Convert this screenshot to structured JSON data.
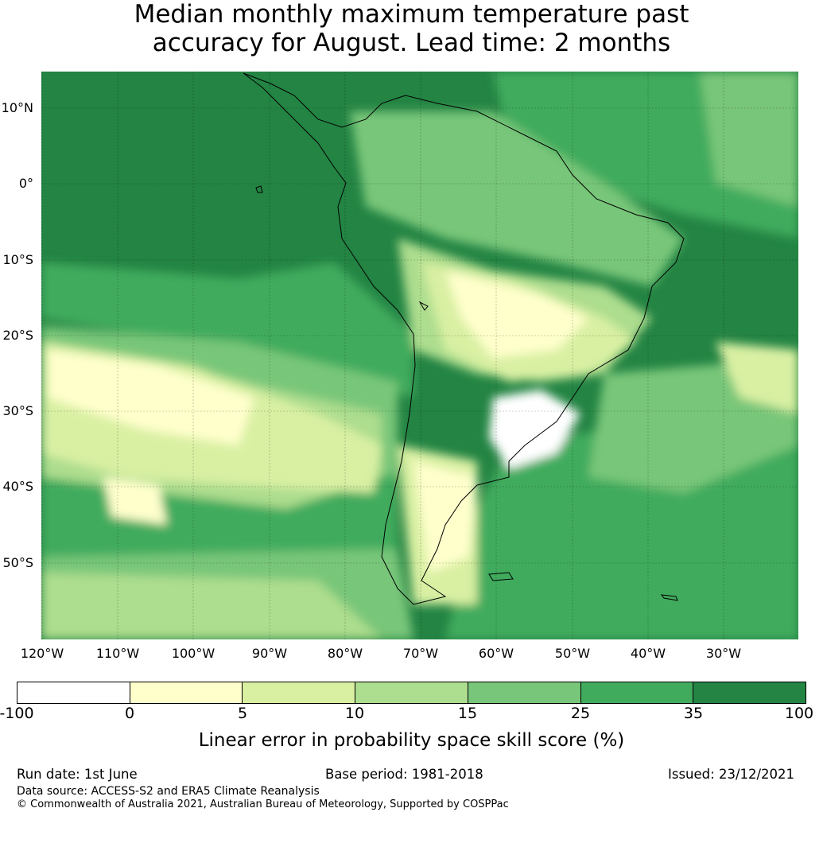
{
  "title": {
    "line1": "Median monthly maximum temperature past",
    "line2": "accuracy for August. Lead time: 2 months"
  },
  "map": {
    "lat_labels": [
      "10°N",
      "0°",
      "10°S",
      "20°S",
      "30°S",
      "40°S",
      "50°S"
    ],
    "lon_labels": [
      "120°W",
      "110°W",
      "100°W",
      "90°W",
      "80°W",
      "70°W",
      "60°W",
      "50°W",
      "40°W",
      "30°W"
    ],
    "region": "South America",
    "background_color": "#238443"
  },
  "colorbar": {
    "ticks": [
      "-100",
      "0",
      "5",
      "10",
      "15",
      "25",
      "35",
      "100"
    ],
    "colors": [
      "#ffffff",
      "#ffffcc",
      "#d9f0a3",
      "#addd8e",
      "#78c679",
      "#41ab5d",
      "#238443"
    ],
    "label": "Linear error in probability space skill score (%)"
  },
  "footer": {
    "run_date": "Run date: 1st June",
    "base_period": "Base period: 1981-2018",
    "issued": "Issued: 23/12/2021",
    "data_source": "Data source: ACCESS-S2 and ERA5 Climate Reanalysis",
    "copyright": "© Commonwealth of Australia 2021, Australian Bureau of Meteorology, Supported by COSPPac"
  }
}
